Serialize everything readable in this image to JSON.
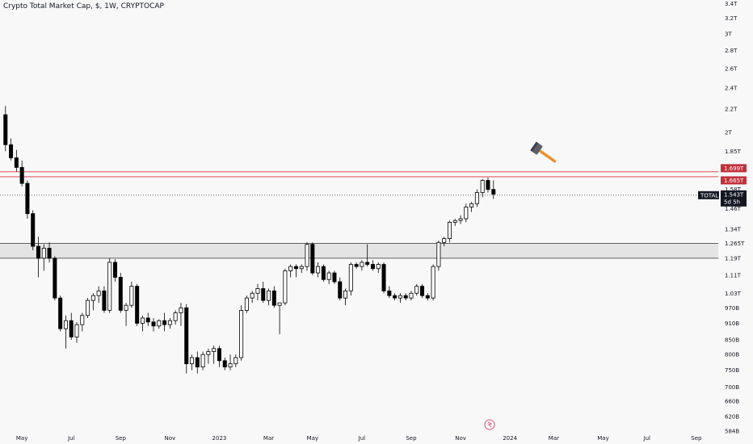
{
  "title": "Crypto Total Market Cap, $, 1W, CRYPTOCAP",
  "colors": {
    "background": "#f8f8f8",
    "candle": "#000000",
    "resistance": "#e0313b",
    "label_red": "#c0313b",
    "label_dark": "#131722",
    "zone_fill": "#d3d3d3"
  },
  "chart_data": {
    "type": "candlestick",
    "title": "Crypto Total Market Cap, $, 1W, CRYPTOCAP",
    "y_scale": "log",
    "ylim": [
      572000000000,
      3450000000000
    ],
    "grid": false,
    "y_ticks": [
      {
        "value": 3400000000000,
        "label": "3.4T"
      },
      {
        "value": 3200000000000,
        "label": "3.2T"
      },
      {
        "value": 3000000000000,
        "label": "3T"
      },
      {
        "value": 2800000000000,
        "label": "2.8T"
      },
      {
        "value": 2600000000000,
        "label": "2.6T"
      },
      {
        "value": 2400000000000,
        "label": "2.4T"
      },
      {
        "value": 2200000000000,
        "label": "2.2T"
      },
      {
        "value": 2000000000000,
        "label": "2T"
      },
      {
        "value": 1850000000000,
        "label": "1.85T"
      },
      {
        "value": 1580000000000,
        "label": "1.58T"
      },
      {
        "value": 1460000000000,
        "label": "1.46T"
      },
      {
        "value": 1340000000000,
        "label": "1.34T"
      },
      {
        "value": 1265000000000,
        "label": "1.265T"
      },
      {
        "value": 1190000000000,
        "label": "1.19T"
      },
      {
        "value": 1110000000000,
        "label": "1.11T"
      },
      {
        "value": 1030000000000,
        "label": "1.03T"
      },
      {
        "value": 970000000000,
        "label": "970B"
      },
      {
        "value": 910000000000,
        "label": "910B"
      },
      {
        "value": 850000000000,
        "label": "850B"
      },
      {
        "value": 800000000000,
        "label": "800B"
      },
      {
        "value": 750000000000,
        "label": "750B"
      },
      {
        "value": 700000000000,
        "label": "700B"
      },
      {
        "value": 660000000000,
        "label": "660B"
      },
      {
        "value": 620000000000,
        "label": "620B"
      },
      {
        "value": 584000000000,
        "label": "584B"
      }
    ],
    "x_ticks": [
      {
        "week": 3,
        "label": "May"
      },
      {
        "week": 12,
        "label": "Jul"
      },
      {
        "week": 21,
        "label": "Sep"
      },
      {
        "week": 30,
        "label": "Nov"
      },
      {
        "week": 39,
        "label": "2023"
      },
      {
        "week": 48,
        "label": "Mar"
      },
      {
        "week": 56,
        "label": "May"
      },
      {
        "week": 65,
        "label": "Jul"
      },
      {
        "week": 74,
        "label": "Sep"
      },
      {
        "week": 83,
        "label": "Nov"
      },
      {
        "week": 92,
        "label": "2024"
      },
      {
        "week": 100,
        "label": "Mar"
      },
      {
        "week": 109,
        "label": "May"
      },
      {
        "week": 117,
        "label": "Jul"
      },
      {
        "week": 126,
        "label": "Sep"
      }
    ],
    "x_range": [
      -1,
      130
    ],
    "candles": [
      [
        2150,
        2230,
        1850,
        1900
      ],
      [
        1900,
        1950,
        1780,
        1800
      ],
      [
        1800,
        1860,
        1700,
        1730
      ],
      [
        1730,
        1780,
        1600,
        1620
      ],
      [
        1620,
        1640,
        1400,
        1430
      ],
      [
        1430,
        1450,
        1230,
        1250
      ],
      [
        1250,
        1300,
        1100,
        1190
      ],
      [
        1190,
        1260,
        1130,
        1240
      ],
      [
        1240,
        1270,
        1170,
        1190
      ],
      [
        1190,
        1200,
        1000,
        1010
      ],
      [
        1010,
        1020,
        880,
        890
      ],
      [
        890,
        940,
        820,
        920
      ],
      [
        920,
        950,
        850,
        860
      ],
      [
        860,
        915,
        840,
        905
      ],
      [
        905,
        950,
        880,
        940
      ],
      [
        940,
        1010,
        930,
        1000
      ],
      [
        1000,
        1030,
        960,
        1020
      ],
      [
        1020,
        1060,
        990,
        1040
      ],
      [
        1040,
        1060,
        950,
        960
      ],
      [
        960,
        1190,
        950,
        1170
      ],
      [
        1170,
        1185,
        1080,
        1100
      ],
      [
        1100,
        1120,
        950,
        960
      ],
      [
        960,
        990,
        900,
        980
      ],
      [
        980,
        1080,
        970,
        1060
      ],
      [
        1060,
        1070,
        900,
        910
      ],
      [
        910,
        940,
        880,
        930
      ],
      [
        930,
        950,
        900,
        915
      ],
      [
        915,
        930,
        880,
        900
      ],
      [
        900,
        925,
        890,
        920
      ],
      [
        920,
        950,
        880,
        905
      ],
      [
        905,
        930,
        890,
        920
      ],
      [
        920,
        960,
        905,
        950
      ],
      [
        950,
        990,
        900,
        970
      ],
      [
        970,
        985,
        740,
        770
      ],
      [
        770,
        800,
        750,
        790
      ],
      [
        790,
        810,
        740,
        760
      ],
      [
        760,
        810,
        750,
        800
      ],
      [
        800,
        820,
        770,
        810
      ],
      [
        810,
        830,
        770,
        820
      ],
      [
        820,
        830,
        760,
        780
      ],
      [
        780,
        790,
        750,
        760
      ],
      [
        760,
        800,
        750,
        770
      ],
      [
        770,
        800,
        760,
        790
      ],
      [
        790,
        980,
        780,
        960
      ],
      [
        960,
        1020,
        950,
        1010
      ],
      [
        1010,
        1040,
        990,
        1030
      ],
      [
        1030,
        1070,
        1000,
        1050
      ],
      [
        1050,
        1080,
        990,
        1000
      ],
      [
        1000,
        1050,
        980,
        1040
      ],
      [
        1040,
        1060,
        970,
        980
      ],
      [
        980,
        990,
        870,
        990
      ],
      [
        990,
        1140,
        980,
        1130
      ],
      [
        1130,
        1160,
        1100,
        1150
      ],
      [
        1150,
        1160,
        1100,
        1140
      ],
      [
        1140,
        1160,
        1120,
        1150
      ],
      [
        1150,
        1270,
        1130,
        1260
      ],
      [
        1260,
        1270,
        1110,
        1120
      ],
      [
        1120,
        1170,
        1100,
        1150
      ],
      [
        1150,
        1160,
        1080,
        1090
      ],
      [
        1090,
        1130,
        1070,
        1120
      ],
      [
        1120,
        1130,
        1070,
        1080
      ],
      [
        1080,
        1100,
        1000,
        1010
      ],
      [
        1010,
        1050,
        980,
        1040
      ],
      [
        1040,
        1170,
        1020,
        1160
      ],
      [
        1160,
        1170,
        1140,
        1150
      ],
      [
        1150,
        1180,
        1130,
        1170
      ],
      [
        1170,
        1260,
        1150,
        1160
      ],
      [
        1160,
        1180,
        1130,
        1140
      ],
      [
        1140,
        1170,
        1120,
        1160
      ],
      [
        1160,
        1170,
        1030,
        1040
      ],
      [
        1040,
        1060,
        1010,
        1020
      ],
      [
        1020,
        1030,
        1000,
        1010
      ],
      [
        1010,
        1030,
        990,
        1020
      ],
      [
        1020,
        1030,
        1000,
        1010
      ],
      [
        1010,
        1040,
        1000,
        1030
      ],
      [
        1030,
        1070,
        1020,
        1060
      ],
      [
        1060,
        1070,
        1010,
        1020
      ],
      [
        1020,
        1030,
        1000,
        1010
      ],
      [
        1010,
        1160,
        1000,
        1150
      ],
      [
        1150,
        1280,
        1130,
        1270
      ],
      [
        1270,
        1300,
        1250,
        1290
      ],
      [
        1290,
        1390,
        1270,
        1380
      ],
      [
        1380,
        1400,
        1360,
        1390
      ],
      [
        1390,
        1420,
        1370,
        1400
      ],
      [
        1400,
        1490,
        1380,
        1470
      ],
      [
        1470,
        1500,
        1440,
        1490
      ],
      [
        1490,
        1580,
        1470,
        1560
      ],
      [
        1560,
        1650,
        1530,
        1640
      ],
      [
        1640,
        1660,
        1560,
        1580
      ],
      [
        1580,
        1640,
        1520,
        1550
      ]
    ],
    "candles_unit": "B (billions USD), [open, high, low, close]",
    "resistance_lines": [
      1699000000000,
      1665000000000
    ],
    "resistance_labels": [
      "1.699T",
      "1.665T"
    ],
    "support_zone": {
      "low": 1190000000000,
      "high": 1265000000000
    },
    "current_price": 1543000000000,
    "current_label": "1.543T",
    "symbol_label": "TOTAL",
    "countdown_label": "5d 5h",
    "annotation_icon": "hammer-icon"
  }
}
